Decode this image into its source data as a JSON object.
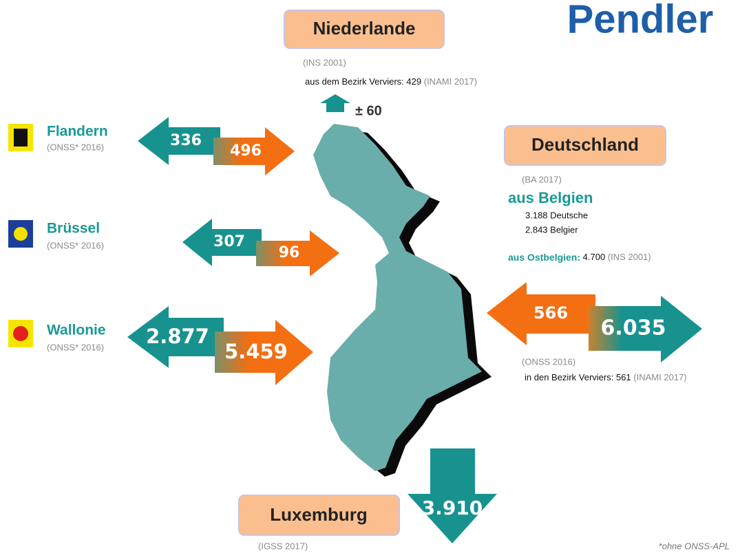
{
  "title": "Pendler",
  "footnote": "*ohne ONSS-APL",
  "regions": [
    {
      "name": "Flandern",
      "source": "(ONSS* 2016)",
      "teal_arrow": "336",
      "orange_arrow": "496"
    },
    {
      "name": "Brüssel",
      "source": "(ONSS* 2016)",
      "teal_arrow": "307",
      "orange_arrow": "96"
    },
    {
      "name": "Wallonie",
      "source": "(ONSS* 2016)",
      "teal_arrow": "2.877",
      "orange_arrow": "5.459"
    }
  ],
  "netherlands": {
    "label": "Niederlande",
    "source": "(INS 2001)",
    "note_prefix": "aus dem Bezirk Verviers:",
    "note_value": "429",
    "note_source": "(INAMI 2017)",
    "arrow": "± 60"
  },
  "germany": {
    "label": "Deutschland",
    "source": "(BA 2017)",
    "from_belgium": "aus Belgien",
    "lines": [
      "3.188 Deutsche",
      "2.843 Belgier"
    ],
    "from_east_prefix": "aus Ostbelgien:",
    "from_east_value": "4.700",
    "from_east_source": "(INS 2001)",
    "orange_arrow": "566",
    "teal_arrow": "6.035",
    "source2": "(ONSS 2016)",
    "note_prefix": "in den Bezirk Verviers:",
    "note_value": "561",
    "note_source": "(INAMI 2017)"
  },
  "luxembourg": {
    "label": "Luxemburg",
    "arrow": "3.910",
    "source": "(IGSS 2017)"
  }
}
